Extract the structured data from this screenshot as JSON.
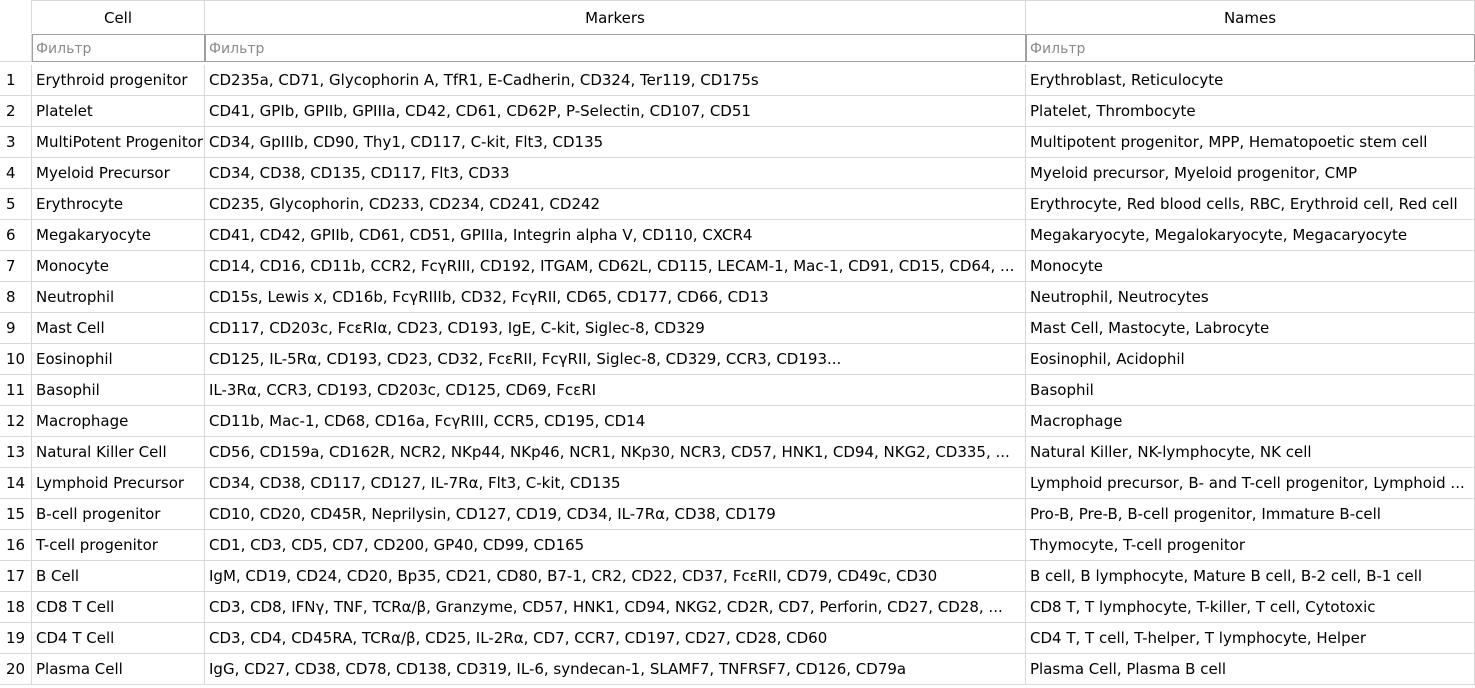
{
  "headers": {
    "cell": "Cell",
    "markers": "Markers",
    "names": "Names"
  },
  "filter_placeholder": "Фильтр",
  "rows": [
    {
      "n": "1",
      "cell": "Erythroid progenitor",
      "markers": "CD235a, CD71, Glycophorin A, TfR1, E-Cadherin, CD324, Ter119, CD175s",
      "names": "Erythroblast, Reticulocyte"
    },
    {
      "n": "2",
      "cell": "Platelet",
      "markers": "CD41, GPIb, GPIIb, GPIIIa, CD42, CD61, CD62P, P-Selectin, CD107, CD51",
      "names": "Platelet, Thrombocyte"
    },
    {
      "n": "3",
      "cell": "MultiPotent Progenitor",
      "markers": "CD34, GpIIIb, CD90, Thy1, CD117, C-kit, Flt3, CD135",
      "names": "Multipotent progenitor, MPP, Hematopoetic stem cell"
    },
    {
      "n": "4",
      "cell": "Myeloid Precursor",
      "markers": "CD34, CD38, CD135, CD117, Flt3, CD33",
      "names": "Myeloid precursor, Myeloid progenitor, CMP"
    },
    {
      "n": "5",
      "cell": "Erythrocyte",
      "markers": "CD235, Glycophorin, CD233, CD234, CD241, CD242",
      "names": "Erythrocyte, Red blood cells, RBC, Erythroid cell, Red cell"
    },
    {
      "n": "6",
      "cell": "Megakaryocyte",
      "markers": "CD41, CD42, GPIIb, CD61, CD51, GPIIIa, Integrin alpha V, CD110, CXCR4",
      "names": "Megakaryocyte, Megalokaryocyte, Megacaryocyte"
    },
    {
      "n": "7",
      "cell": "Monocyte",
      "markers": "CD14, CD16, CD11b, CCR2, FcγRIII, CD192, ITGAM, CD62L, CD115, LECAM-1, Mac-1, CD91, CD15, CD64, ...",
      "names": "Monocyte"
    },
    {
      "n": "8",
      "cell": "Neutrophil",
      "markers": "CD15s, Lewis x, CD16b, FcγRIIIb, CD32, FcγRII, CD65, CD177, CD66, CD13",
      "names": "Neutrophil, Neutrocytes"
    },
    {
      "n": "9",
      "cell": "Mast Cell",
      "markers": "CD117, CD203c, FcεRIα, CD23, CD193, IgE, C-kit, Siglec-8, CD329",
      "names": "Mast Cell, Mastocyte, Labrocyte"
    },
    {
      "n": "10",
      "cell": "Eosinophil",
      "markers": "CD125, IL-5Rα, CD193, CD23, CD32, FcεRII, FcγRII, Siglec-8, CD329, CCR3, CD193...",
      "names": "Eosinophil, Acidophil"
    },
    {
      "n": "11",
      "cell": "Basophil",
      "markers": "IL-3Rα, CCR3, CD193, CD203c, CD125, CD69, FcεRI",
      "names": "Basophil"
    },
    {
      "n": "12",
      "cell": "Macrophage",
      "markers": "CD11b, Mac-1, CD68, CD16a, FcγRIII, CCR5, CD195, CD14",
      "names": "Macrophage"
    },
    {
      "n": "13",
      "cell": "Natural Killer Cell",
      "markers": "CD56, CD159a, CD162R, NCR2, NKp44, NKp46, NCR1, NKp30, NCR3, CD57, HNK1, CD94, NKG2, CD335, ...",
      "names": "Natural Killer, NK-lymphocyte, NK cell"
    },
    {
      "n": "14",
      "cell": "Lymphoid Precursor",
      "markers": "CD34, CD38, CD117, CD127, IL-7Rα, Flt3, C-kit, CD135",
      "names": "Lymphoid precursor, B- and T-cell progenitor, Lymphoid ..."
    },
    {
      "n": "15",
      "cell": "B-cell progenitor",
      "markers": "CD10, CD20, CD45R, Neprilysin, CD127, CD19, CD34, IL-7Rα, CD38, CD179",
      "names": "Pro-B, Pre-B, B-cell progenitor, Immature B-cell"
    },
    {
      "n": "16",
      "cell": "T-cell progenitor",
      "markers": "CD1, CD3, CD5, CD7, CD200, GP40, CD99, CD165",
      "names": "Thymocyte, T-cell progenitor"
    },
    {
      "n": "17",
      "cell": "B Cell",
      "markers": "IgM, CD19, CD24, CD20, Bp35, CD21, CD80, B7-1, CR2, CD22, CD37, FcεRII, CD79, CD49c, CD30",
      "names": "B cell, B lymphocyte, Mature B cell, B-2 cell, B-1 cell"
    },
    {
      "n": "18",
      "cell": "CD8 T Cell",
      "markers": "CD3, CD8, IFNγ, TNF, TCRα/β, Granzyme, CD57, HNK1, CD94, NKG2, CD2R, CD7, Perforin, CD27, CD28, ...",
      "names": "CD8 T, T lymphocyte, T-killer, T cell, Cytotoxic"
    },
    {
      "n": "19",
      "cell": "CD4 T Cell",
      "markers": "CD3, CD4, CD45RA, TCRα/β, CD25, IL-2Rα, CD7, CCR7, CD197, CD27, CD28, CD60",
      "names": "CD4 T, T cell, T-helper, T lymphocyte, Helper"
    },
    {
      "n": "20",
      "cell": "Plasma Cell",
      "markers": "IgG, CD27, CD38, CD78, CD138, CD319, IL-6, syndecan-1, SLAMF7, TNFRSF7, CD126, CD79a",
      "names": "Plasma Cell, Plasma B cell"
    }
  ]
}
